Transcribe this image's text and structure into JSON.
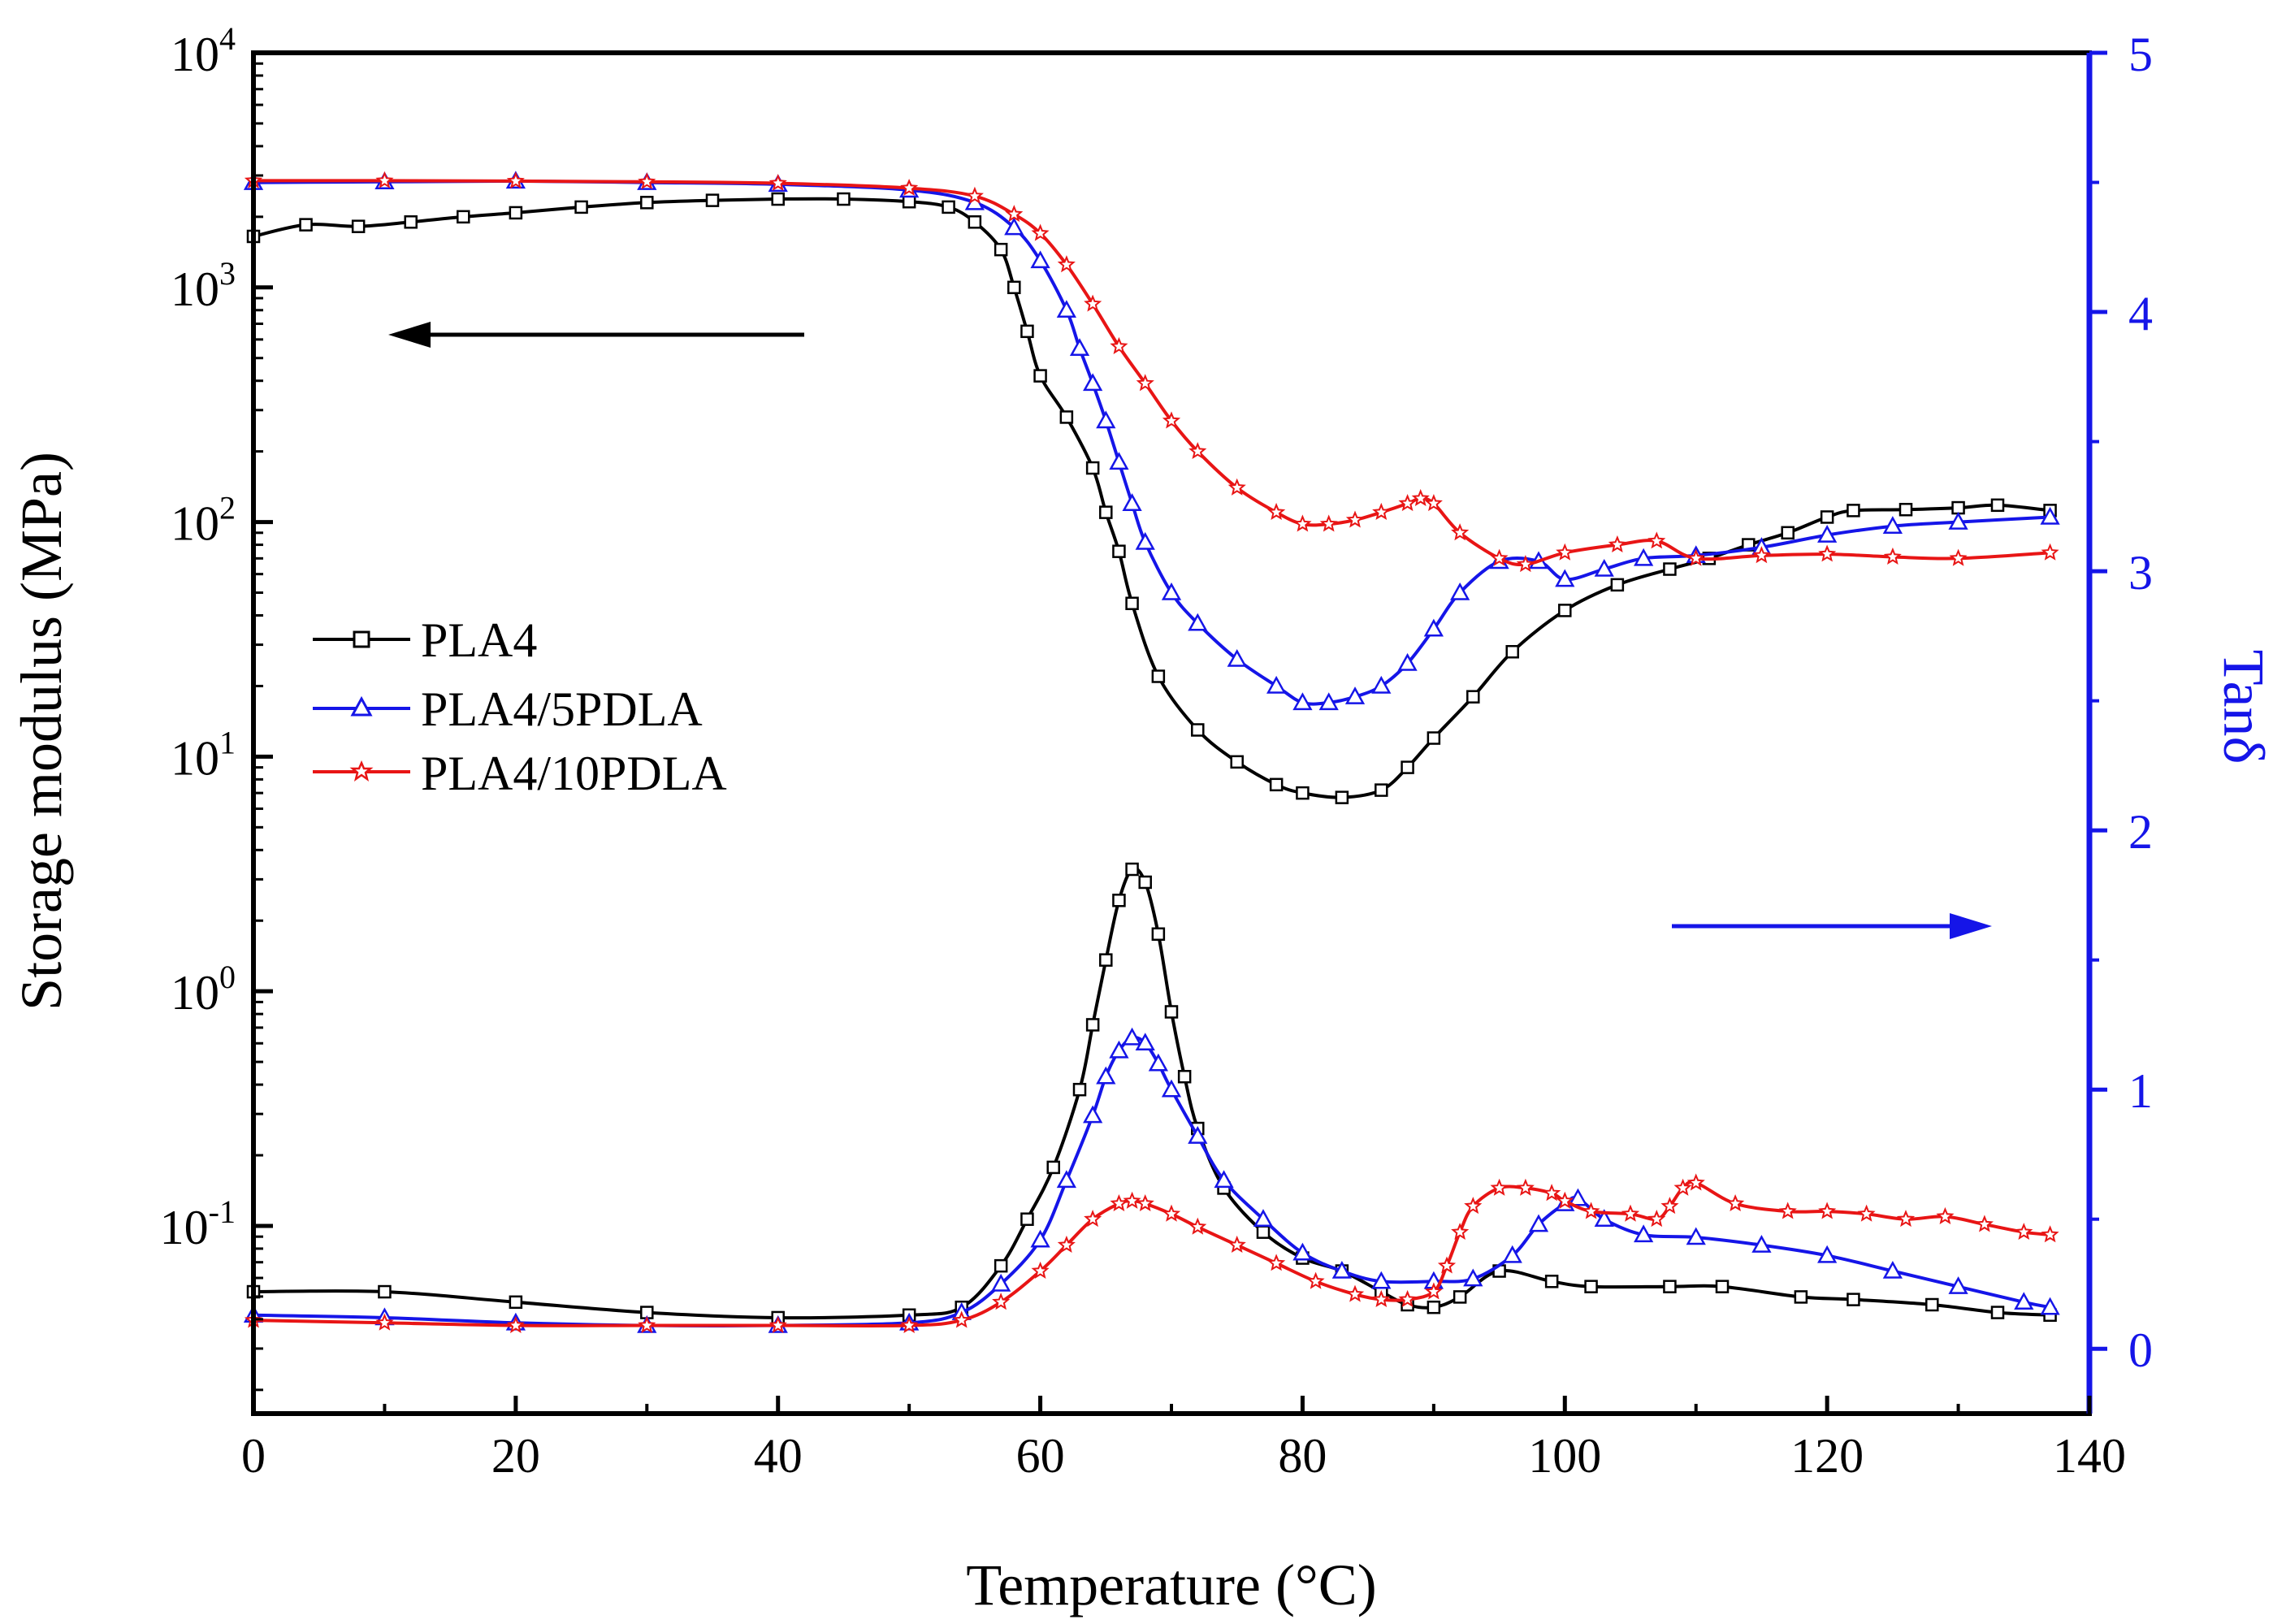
{
  "chart_data": {
    "type": "line",
    "title": "",
    "xlabel": "Temperature (°C)",
    "ylabel_left": "Storage modulus (MPa)",
    "ylabel_right": "Tanδ",
    "xlim": [
      0,
      140
    ],
    "ylim_left_log10": [
      -1.8,
      4
    ],
    "ylim_right": [
      -0.25,
      5
    ],
    "x_ticks": [
      "0",
      "20",
      "40",
      "60",
      "80",
      "100",
      "120",
      "140"
    ],
    "y_left_ticks": [
      {
        "base": "10",
        "exp": "4",
        "log": 4
      },
      {
        "base": "10",
        "exp": "3",
        "log": 3
      },
      {
        "base": "10",
        "exp": "2",
        "log": 2
      },
      {
        "base": "10",
        "exp": "1",
        "log": 1
      },
      {
        "base": "10",
        "exp": "0",
        "log": 0
      },
      {
        "base": "10",
        "exp": "-1",
        "log": -1
      }
    ],
    "y_right_ticks": [
      "0",
      "1",
      "2",
      "3",
      "4",
      "5"
    ],
    "legend": {
      "position": "center-left",
      "entries": [
        {
          "label": "PLA4",
          "color": "#000000",
          "marker": "square"
        },
        {
          "label": "PLA4/5PDLA",
          "color": "#1515e8",
          "marker": "triangle"
        },
        {
          "label": "PLA4/10PDLA",
          "color": "#e81515",
          "marker": "star"
        }
      ]
    },
    "annotations": [
      {
        "type": "arrow",
        "direction": "left",
        "meaning": "storage modulus curves use left axis",
        "color": "#000000"
      },
      {
        "type": "arrow",
        "direction": "right",
        "meaning": "tan delta curves use right axis",
        "color": "#1515e8"
      }
    ],
    "series": [
      {
        "name": "PLA4",
        "quantity": "storage modulus (MPa)",
        "axis": "left",
        "color": "#000000",
        "marker": "square",
        "x": [
          0,
          4,
          8,
          12,
          16,
          20,
          25,
          30,
          35,
          40,
          45,
          50,
          53,
          55,
          57,
          58,
          59,
          60,
          62,
          64,
          65,
          66,
          67,
          69,
          72,
          75,
          78,
          80,
          83,
          86,
          88,
          90,
          93,
          96,
          100,
          104,
          108,
          111,
          114,
          117,
          120,
          122,
          126,
          130,
          133,
          137
        ],
        "y": [
          1650,
          1850,
          1820,
          1900,
          2000,
          2080,
          2200,
          2300,
          2350,
          2380,
          2380,
          2320,
          2200,
          1900,
          1450,
          1000,
          650,
          420,
          280,
          170,
          110,
          75,
          45,
          22,
          13,
          9.5,
          7.6,
          7.0,
          6.7,
          7.2,
          9,
          12,
          18,
          28,
          42,
          54,
          63,
          70,
          80,
          90,
          105,
          112,
          113,
          115,
          118,
          112
        ]
      },
      {
        "name": "PLA4/5PDLA",
        "quantity": "storage modulus (MPa)",
        "axis": "left",
        "color": "#1515e8",
        "marker": "triangle",
        "x": [
          0,
          10,
          20,
          30,
          40,
          50,
          55,
          58,
          60,
          62,
          63,
          64,
          65,
          66,
          67,
          68,
          70,
          72,
          75,
          78,
          80,
          82,
          84,
          86,
          88,
          90,
          92,
          95,
          98,
          100,
          103,
          106,
          110,
          115,
          120,
          125,
          130,
          137
        ],
        "y": [
          2800,
          2820,
          2840,
          2800,
          2750,
          2600,
          2300,
          1800,
          1300,
          800,
          550,
          390,
          270,
          180,
          120,
          82,
          50,
          37,
          26,
          20,
          17,
          17,
          18,
          20,
          25,
          35,
          50,
          68,
          68,
          57,
          63,
          70,
          72,
          78,
          88,
          96,
          100,
          105
        ]
      },
      {
        "name": "PLA4/10PDLA",
        "quantity": "storage modulus (MPa)",
        "axis": "left",
        "color": "#e81515",
        "marker": "star",
        "x": [
          0,
          10,
          20,
          30,
          40,
          50,
          55,
          58,
          60,
          62,
          64,
          66,
          68,
          70,
          72,
          75,
          78,
          80,
          82,
          84,
          86,
          88,
          89,
          90,
          92,
          95,
          97,
          100,
          104,
          107,
          110,
          115,
          120,
          125,
          130,
          137
        ],
        "y": [
          2850,
          2850,
          2840,
          2820,
          2780,
          2650,
          2450,
          2050,
          1700,
          1250,
          850,
          560,
          390,
          270,
          200,
          140,
          110,
          98,
          98,
          102,
          110,
          120,
          126,
          120,
          90,
          70,
          66,
          74,
          80,
          83,
          70,
          72,
          73,
          71,
          70,
          74
        ]
      },
      {
        "name": "PLA4",
        "quantity": "tan delta",
        "axis": "right",
        "color": "#000000",
        "marker": "square",
        "x": [
          0,
          10,
          20,
          30,
          40,
          50,
          54,
          57,
          59,
          61,
          63,
          64,
          65,
          66,
          67,
          68,
          69,
          70,
          71,
          72,
          74,
          77,
          80,
          83,
          86,
          88,
          90,
          92,
          95,
          99,
          102,
          108,
          112,
          118,
          122,
          128,
          133,
          137
        ],
        "y": [
          0.22,
          0.22,
          0.18,
          0.14,
          0.12,
          0.13,
          0.16,
          0.32,
          0.5,
          0.7,
          1.0,
          1.25,
          1.5,
          1.73,
          1.85,
          1.8,
          1.6,
          1.3,
          1.05,
          0.85,
          0.62,
          0.45,
          0.35,
          0.3,
          0.22,
          0.17,
          0.16,
          0.2,
          0.3,
          0.26,
          0.24,
          0.24,
          0.24,
          0.2,
          0.19,
          0.17,
          0.14,
          0.13
        ]
      },
      {
        "name": "PLA4/5PDLA",
        "quantity": "tan delta",
        "axis": "right",
        "color": "#1515e8",
        "marker": "triangle",
        "x": [
          0,
          10,
          20,
          30,
          40,
          50,
          54,
          57,
          60,
          62,
          64,
          65,
          66,
          67,
          68,
          69,
          70,
          72,
          74,
          77,
          80,
          83,
          86,
          90,
          93,
          96,
          98,
          100,
          101,
          103,
          106,
          110,
          115,
          120,
          125,
          130,
          135,
          137
        ],
        "y": [
          0.13,
          0.12,
          0.1,
          0.09,
          0.09,
          0.1,
          0.14,
          0.25,
          0.42,
          0.65,
          0.9,
          1.05,
          1.15,
          1.2,
          1.18,
          1.1,
          1.0,
          0.82,
          0.65,
          0.5,
          0.37,
          0.3,
          0.26,
          0.26,
          0.27,
          0.36,
          0.48,
          0.56,
          0.58,
          0.5,
          0.44,
          0.43,
          0.4,
          0.36,
          0.3,
          0.24,
          0.18,
          0.16
        ]
      },
      {
        "name": "PLA4/10PDLA",
        "quantity": "tan delta",
        "axis": "right",
        "color": "#e81515",
        "marker": "star",
        "x": [
          0,
          10,
          20,
          30,
          40,
          50,
          54,
          57,
          60,
          62,
          64,
          66,
          67,
          68,
          70,
          72,
          75,
          78,
          81,
          84,
          86,
          88,
          90,
          91,
          92,
          93,
          95,
          97,
          99,
          100,
          102,
          105,
          107,
          108,
          109,
          110,
          113,
          117,
          120,
          123,
          126,
          129,
          132,
          135,
          137
        ],
        "y": [
          0.11,
          0.1,
          0.09,
          0.09,
          0.09,
          0.09,
          0.11,
          0.18,
          0.3,
          0.4,
          0.5,
          0.56,
          0.57,
          0.56,
          0.52,
          0.47,
          0.4,
          0.33,
          0.26,
          0.21,
          0.19,
          0.19,
          0.22,
          0.32,
          0.45,
          0.55,
          0.62,
          0.62,
          0.6,
          0.57,
          0.53,
          0.52,
          0.5,
          0.55,
          0.62,
          0.64,
          0.56,
          0.53,
          0.53,
          0.52,
          0.5,
          0.51,
          0.48,
          0.45,
          0.44
        ]
      }
    ]
  }
}
